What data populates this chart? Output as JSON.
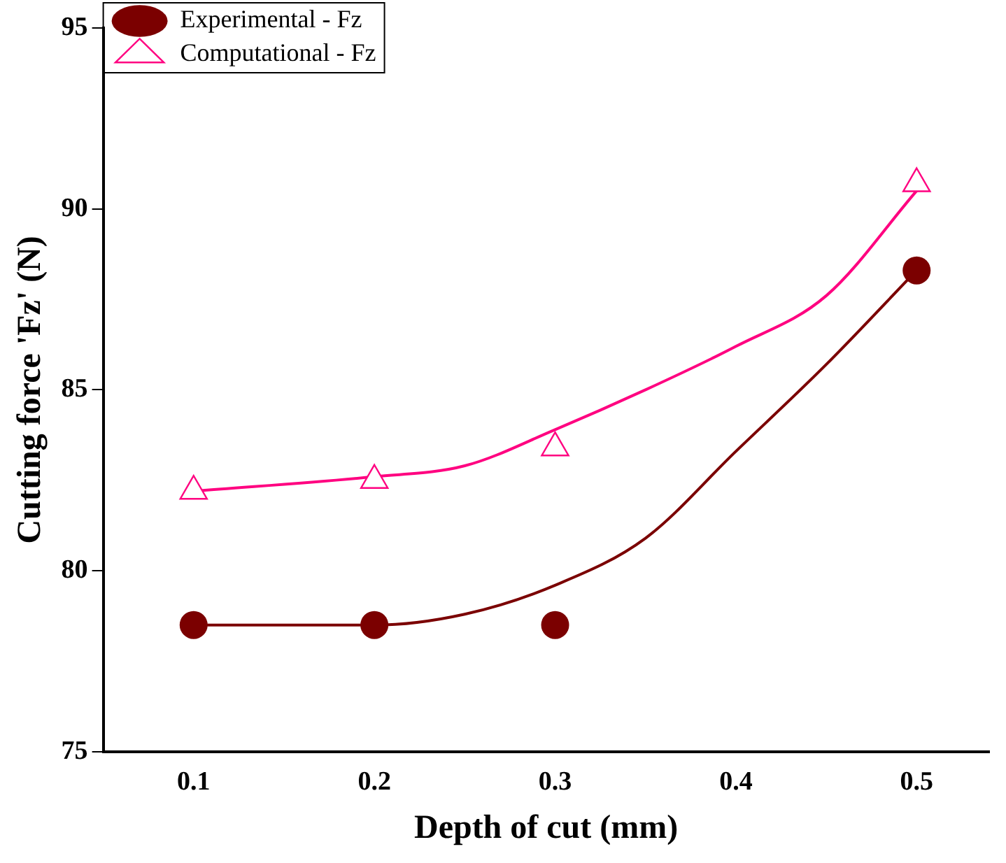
{
  "chart_data": {
    "type": "scatter",
    "xlabel": "Depth of cut (mm)",
    "ylabel": "Cutting force 'Fz' (N)",
    "x": [
      0.1,
      0.2,
      0.3,
      0.5
    ],
    "xlim": [
      0.05,
      0.54
    ],
    "xticks": [
      0.1,
      0.2,
      0.3,
      0.4,
      0.5
    ],
    "ylim": [
      75,
      95
    ],
    "yticks": [
      75,
      80,
      85,
      90,
      95
    ],
    "grid": false,
    "legend": "top left",
    "series": [
      {
        "name": "Experimental - Fz",
        "color": "#7b0000",
        "marker": "circle",
        "values": [
          78.5,
          78.5,
          78.5,
          88.3
        ]
      },
      {
        "name": "Computational - Fz",
        "color": "#ff0080",
        "marker": "triangle",
        "values": [
          82.2,
          82.5,
          83.4,
          90.7
        ]
      },
      {
        "type": "line",
        "color": "#7b0000",
        "marker": "none",
        "x": [
          0.1,
          0.2,
          0.25,
          0.3,
          0.35,
          0.4,
          0.45,
          0.5
        ],
        "values": [
          78.5,
          78.5,
          78.8,
          79.6,
          80.9,
          83.3,
          85.7,
          88.3
        ]
      },
      {
        "type": "line",
        "color": "#ff0080",
        "marker": "none",
        "x": [
          0.1,
          0.2,
          0.25,
          0.3,
          0.35,
          0.4,
          0.45,
          0.5
        ],
        "values": [
          82.2,
          82.6,
          82.9,
          83.9,
          85.0,
          86.2,
          87.6,
          90.5
        ]
      }
    ]
  }
}
